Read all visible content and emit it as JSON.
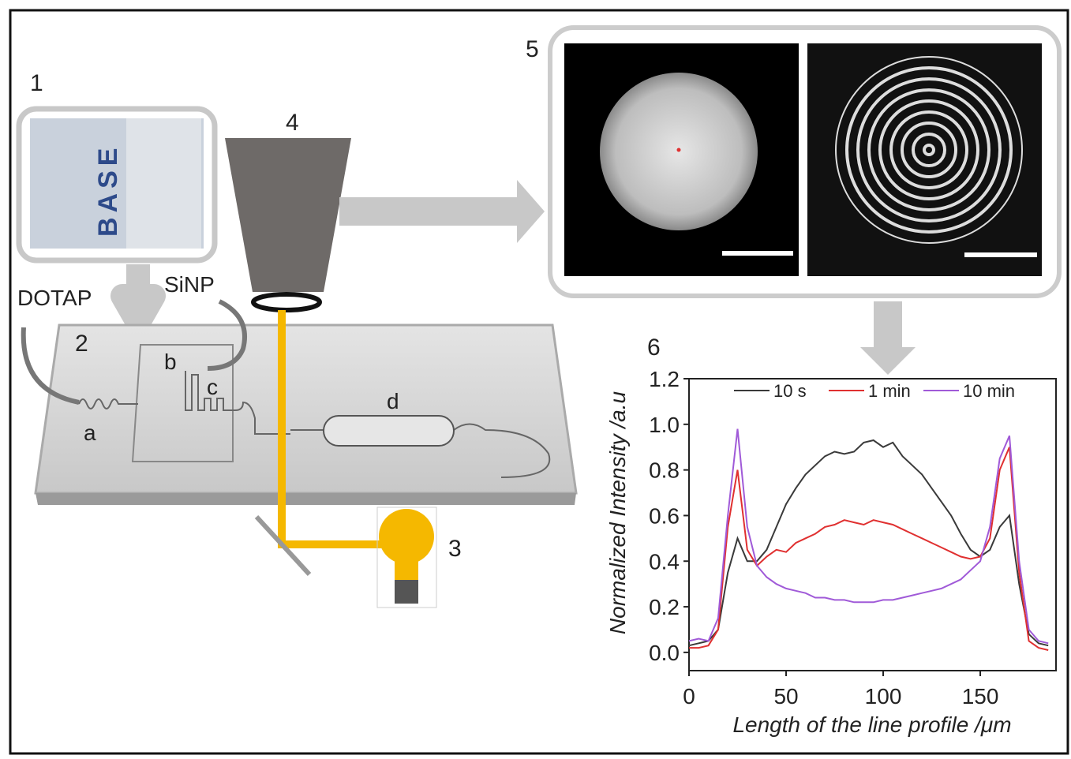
{
  "labels": {
    "step1": "1",
    "step2": "2",
    "step3": "3",
    "step4": "4",
    "step5": "5",
    "step6": "6",
    "base": "BASE",
    "dotap": "DOTAP",
    "sinp": "SiNP",
    "a": "a",
    "b": "b",
    "c": "c",
    "d": "d"
  },
  "chart_data": {
    "type": "line",
    "x_label": "Length of the line profile /μm",
    "y_label": "Normalized Intensity /a.u",
    "x": [
      0,
      5,
      10,
      15,
      20,
      25,
      30,
      35,
      40,
      45,
      50,
      55,
      60,
      65,
      70,
      75,
      80,
      85,
      90,
      95,
      100,
      105,
      110,
      115,
      120,
      125,
      130,
      135,
      140,
      145,
      150,
      155,
      160,
      165,
      170,
      175,
      180,
      185
    ],
    "series": [
      {
        "name": "10 s",
        "color": "#3a3a3a",
        "values": [
          0.03,
          0.04,
          0.05,
          0.1,
          0.35,
          0.5,
          0.4,
          0.4,
          0.45,
          0.55,
          0.65,
          0.72,
          0.78,
          0.82,
          0.86,
          0.88,
          0.87,
          0.88,
          0.92,
          0.93,
          0.9,
          0.92,
          0.86,
          0.82,
          0.78,
          0.72,
          0.66,
          0.6,
          0.52,
          0.45,
          0.42,
          0.45,
          0.55,
          0.6,
          0.3,
          0.08,
          0.04,
          0.03
        ]
      },
      {
        "name": "1 min",
        "color": "#e03030",
        "values": [
          0.02,
          0.02,
          0.03,
          0.1,
          0.55,
          0.8,
          0.45,
          0.38,
          0.42,
          0.45,
          0.44,
          0.48,
          0.5,
          0.52,
          0.55,
          0.56,
          0.58,
          0.57,
          0.56,
          0.58,
          0.57,
          0.56,
          0.54,
          0.52,
          0.5,
          0.48,
          0.46,
          0.44,
          0.42,
          0.41,
          0.42,
          0.5,
          0.8,
          0.9,
          0.35,
          0.05,
          0.02,
          0.01
        ]
      },
      {
        "name": "10 min",
        "color": "#a05ad8",
        "values": [
          0.05,
          0.06,
          0.05,
          0.15,
          0.6,
          0.98,
          0.55,
          0.38,
          0.33,
          0.3,
          0.28,
          0.27,
          0.26,
          0.24,
          0.24,
          0.23,
          0.23,
          0.22,
          0.22,
          0.22,
          0.23,
          0.23,
          0.24,
          0.25,
          0.26,
          0.27,
          0.28,
          0.3,
          0.32,
          0.36,
          0.4,
          0.55,
          0.85,
          0.95,
          0.4,
          0.1,
          0.05,
          0.04
        ]
      }
    ],
    "xlim": [
      0,
      189
    ],
    "xticks": [
      0,
      50,
      100,
      150
    ],
    "ylim": [
      -0.08,
      1.2
    ],
    "yticks": [
      {
        "value": 0,
        "label": "0.0"
      },
      0.2,
      0.4,
      0.6,
      0.8,
      {
        "value": 1,
        "label": "1.0"
      },
      1.2
    ]
  }
}
